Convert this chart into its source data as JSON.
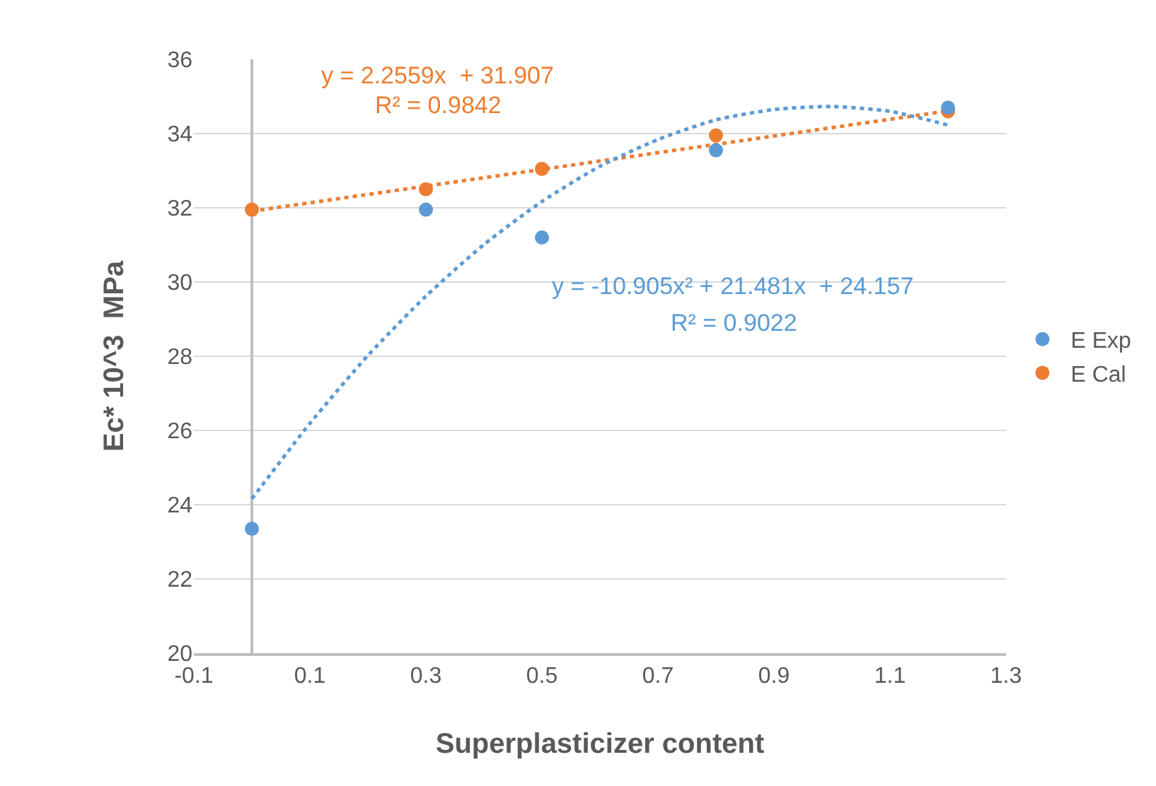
{
  "chart_data": {
    "type": "scatter",
    "xlabel": "Superplasticizer content",
    "ylabel": "Ec* 10^3  MPa",
    "x": [
      0,
      0.3,
      0.5,
      0.8,
      1.2
    ],
    "series": [
      {
        "name": "E Exp",
        "color": "#5b9bd5",
        "values": [
          23.35,
          31.95,
          31.2,
          33.55,
          34.7
        ]
      },
      {
        "name": "E Cal",
        "color": "#ed7d31",
        "values": [
          31.95,
          32.5,
          33.05,
          33.95,
          34.6
        ]
      },
      {
        "type": "line",
        "line_style": "dotted",
        "marker": "none",
        "color": "#5b9bd5",
        "x": [
          0,
          0.1,
          0.2,
          0.3,
          0.4,
          0.5,
          0.6,
          0.7,
          0.8,
          0.9,
          1.0,
          1.1,
          1.2
        ],
        "values": [
          24.16,
          26.19,
          28.02,
          29.62,
          31.01,
          32.17,
          33.12,
          33.84,
          34.37,
          34.65,
          34.73,
          34.6,
          34.23
        ]
      },
      {
        "type": "line",
        "line_style": "dotted",
        "marker": "none",
        "color": "#ed7d31",
        "x": [
          0,
          1.2
        ],
        "values": [
          31.91,
          34.61
        ]
      }
    ],
    "annotations": [
      "y = 2.2559x  + 31.907",
      "R² = 0.9842",
      "y = -10.905x² + 21.481x  + 24.157",
      "R² = 0.9022"
    ],
    "xlim": [
      -0.1,
      1.3
    ],
    "xticks": [
      -0.1,
      0.1,
      0.3,
      0.5,
      0.7,
      0.9,
      1.1,
      1.3
    ],
    "ylim": [
      20,
      36
    ],
    "yticks": [
      20,
      22,
      24,
      26,
      28,
      30,
      32,
      34,
      36
    ],
    "grid": "y",
    "legend": "right",
    "marker": "circle"
  }
}
